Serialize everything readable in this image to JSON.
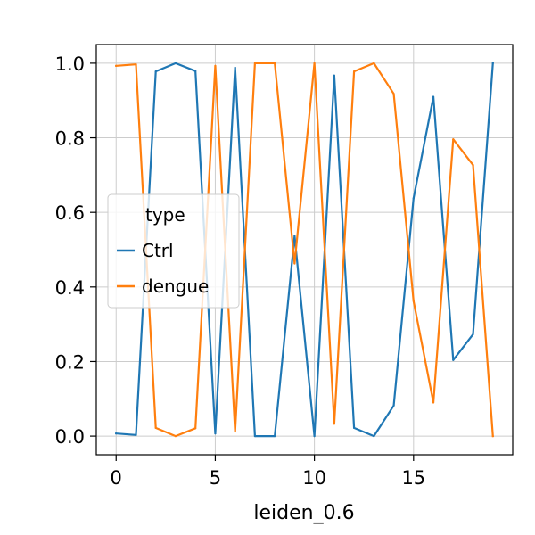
{
  "chart_data": {
    "type": "line",
    "xlabel": "leiden_0.6",
    "ylabel": "",
    "x": [
      0,
      1,
      2,
      3,
      4,
      5,
      6,
      7,
      8,
      9,
      10,
      11,
      12,
      13,
      14,
      15,
      16,
      17,
      18,
      19
    ],
    "xlim": [
      -1,
      20
    ],
    "ylim": [
      -0.05,
      1.05
    ],
    "xticks": [
      0,
      5,
      10,
      15
    ],
    "yticks": [
      0.0,
      0.2,
      0.4,
      0.6,
      0.8,
      1.0
    ],
    "ytick_labels": [
      "0.0",
      "0.2",
      "0.4",
      "0.6",
      "0.8",
      "1.0"
    ],
    "grid": true,
    "legend": {
      "title": "type",
      "placement": "center-left"
    },
    "series": [
      {
        "name": "Ctrl",
        "color": "#1f77b4",
        "values": [
          0.007,
          0.003,
          0.978,
          1.0,
          0.979,
          0.007,
          0.988,
          0.0,
          0.0,
          0.537,
          0.0,
          0.967,
          0.022,
          0.0,
          0.082,
          0.638,
          0.91,
          0.204,
          0.273,
          1.0
        ]
      },
      {
        "name": "dengue",
        "color": "#ff7f0e",
        "values": [
          0.993,
          0.997,
          0.022,
          0.0,
          0.021,
          0.993,
          0.012,
          1.0,
          1.0,
          0.463,
          1.0,
          0.033,
          0.978,
          1.0,
          0.918,
          0.362,
          0.09,
          0.796,
          0.727,
          0.0
        ]
      }
    ]
  }
}
